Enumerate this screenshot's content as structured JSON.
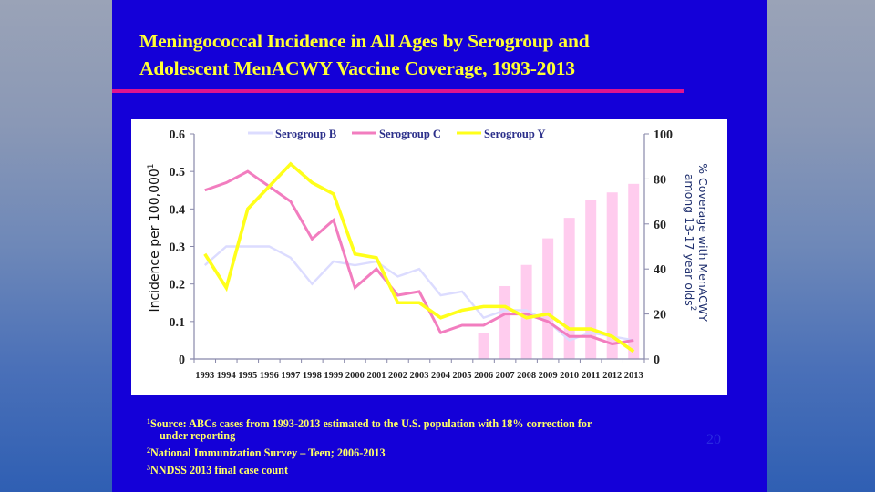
{
  "slide": {
    "title_line1": "Meningococcal Incidence in All Ages by Serogroup and",
    "title_line2": "Adolescent MenACWY Vaccine Coverage, 1993-2013",
    "page_number": "20",
    "footnotes": {
      "fn1_mark": "1",
      "fn1_text": "Source:  ABCs cases from 1993-2013 estimated to the U.S. population with 18% correction  for",
      "fn1_cont": "under reporting",
      "fn2_mark": "2",
      "fn2_text": "National Immunization  Survey – Teen; 2006-2013",
      "fn3_mark": "3",
      "fn3_text": "NNDSS 2013 final case count"
    },
    "colors": {
      "slide_bg": "#1400d8",
      "title": "#ffff33",
      "rule": "#e0138f",
      "serogroup_b": "#dcdcff",
      "serogroup_c": "#f27dbf",
      "serogroup_y": "#ffff1a",
      "coverage_bar": "#ffccee"
    }
  },
  "chart_data": {
    "type": "line+bar",
    "categories": [
      "1993",
      "1994",
      "1995",
      "1996",
      "1997",
      "1998",
      "1999",
      "2000",
      "2001",
      "2002",
      "2003",
      "2004",
      "2005",
      "2006",
      "2007",
      "2008",
      "2009",
      "2010",
      "2011",
      "2012",
      "2013"
    ],
    "series": [
      {
        "name": "Serogroup B",
        "axis": "left",
        "type": "line",
        "color": "#dcdcff",
        "values": [
          0.25,
          0.3,
          0.3,
          0.3,
          0.27,
          0.2,
          0.26,
          0.25,
          0.26,
          0.22,
          0.24,
          0.17,
          0.18,
          0.11,
          0.13,
          0.13,
          0.1,
          0.05,
          0.07,
          0.06,
          0.05
        ]
      },
      {
        "name": "Serogroup C",
        "axis": "left",
        "type": "line",
        "color": "#f27dbf",
        "values": [
          0.45,
          0.47,
          0.5,
          0.46,
          0.42,
          0.32,
          0.37,
          0.19,
          0.24,
          0.17,
          0.18,
          0.07,
          0.09,
          0.09,
          0.12,
          0.12,
          0.1,
          0.06,
          0.06,
          0.04,
          0.05
        ]
      },
      {
        "name": "Serogroup Y",
        "axis": "left",
        "type": "line",
        "color": "#ffff1a",
        "values": [
          0.28,
          0.19,
          0.4,
          0.46,
          0.52,
          0.47,
          0.44,
          0.28,
          0.27,
          0.15,
          0.15,
          0.11,
          0.13,
          0.14,
          0.14,
          0.11,
          0.12,
          0.08,
          0.08,
          0.06,
          0.02
        ]
      },
      {
        "name": "MenACWY coverage",
        "axis": "right",
        "type": "bar",
        "color": "#ffccee",
        "values": [
          null,
          null,
          null,
          null,
          null,
          null,
          null,
          null,
          null,
          null,
          null,
          null,
          null,
          11.7,
          32.4,
          41.8,
          53.6,
          62.7,
          70.5,
          74.0,
          77.8
        ]
      }
    ],
    "legend": [
      "Serogroup B",
      "Serogroup C",
      "Serogroup Y"
    ],
    "legend_position": "top",
    "ylabel": "Incidence per 100,000",
    "ylabel_mark": "1",
    "ylabel_right_line1": "% Coverage with MenACWY",
    "ylabel_right_line2": "among 13-17 year olds",
    "ylabel_right_mark": "2",
    "ylim": [
      0,
      0.6
    ],
    "yticks": [
      "0",
      "0.1",
      "0.2",
      "0.3",
      "0.4",
      "0.5",
      "0.6"
    ],
    "ylim_right": [
      0,
      100
    ],
    "yticks_right": [
      "0",
      "20",
      "40",
      "60",
      "80",
      "100"
    ],
    "grid": false
  }
}
